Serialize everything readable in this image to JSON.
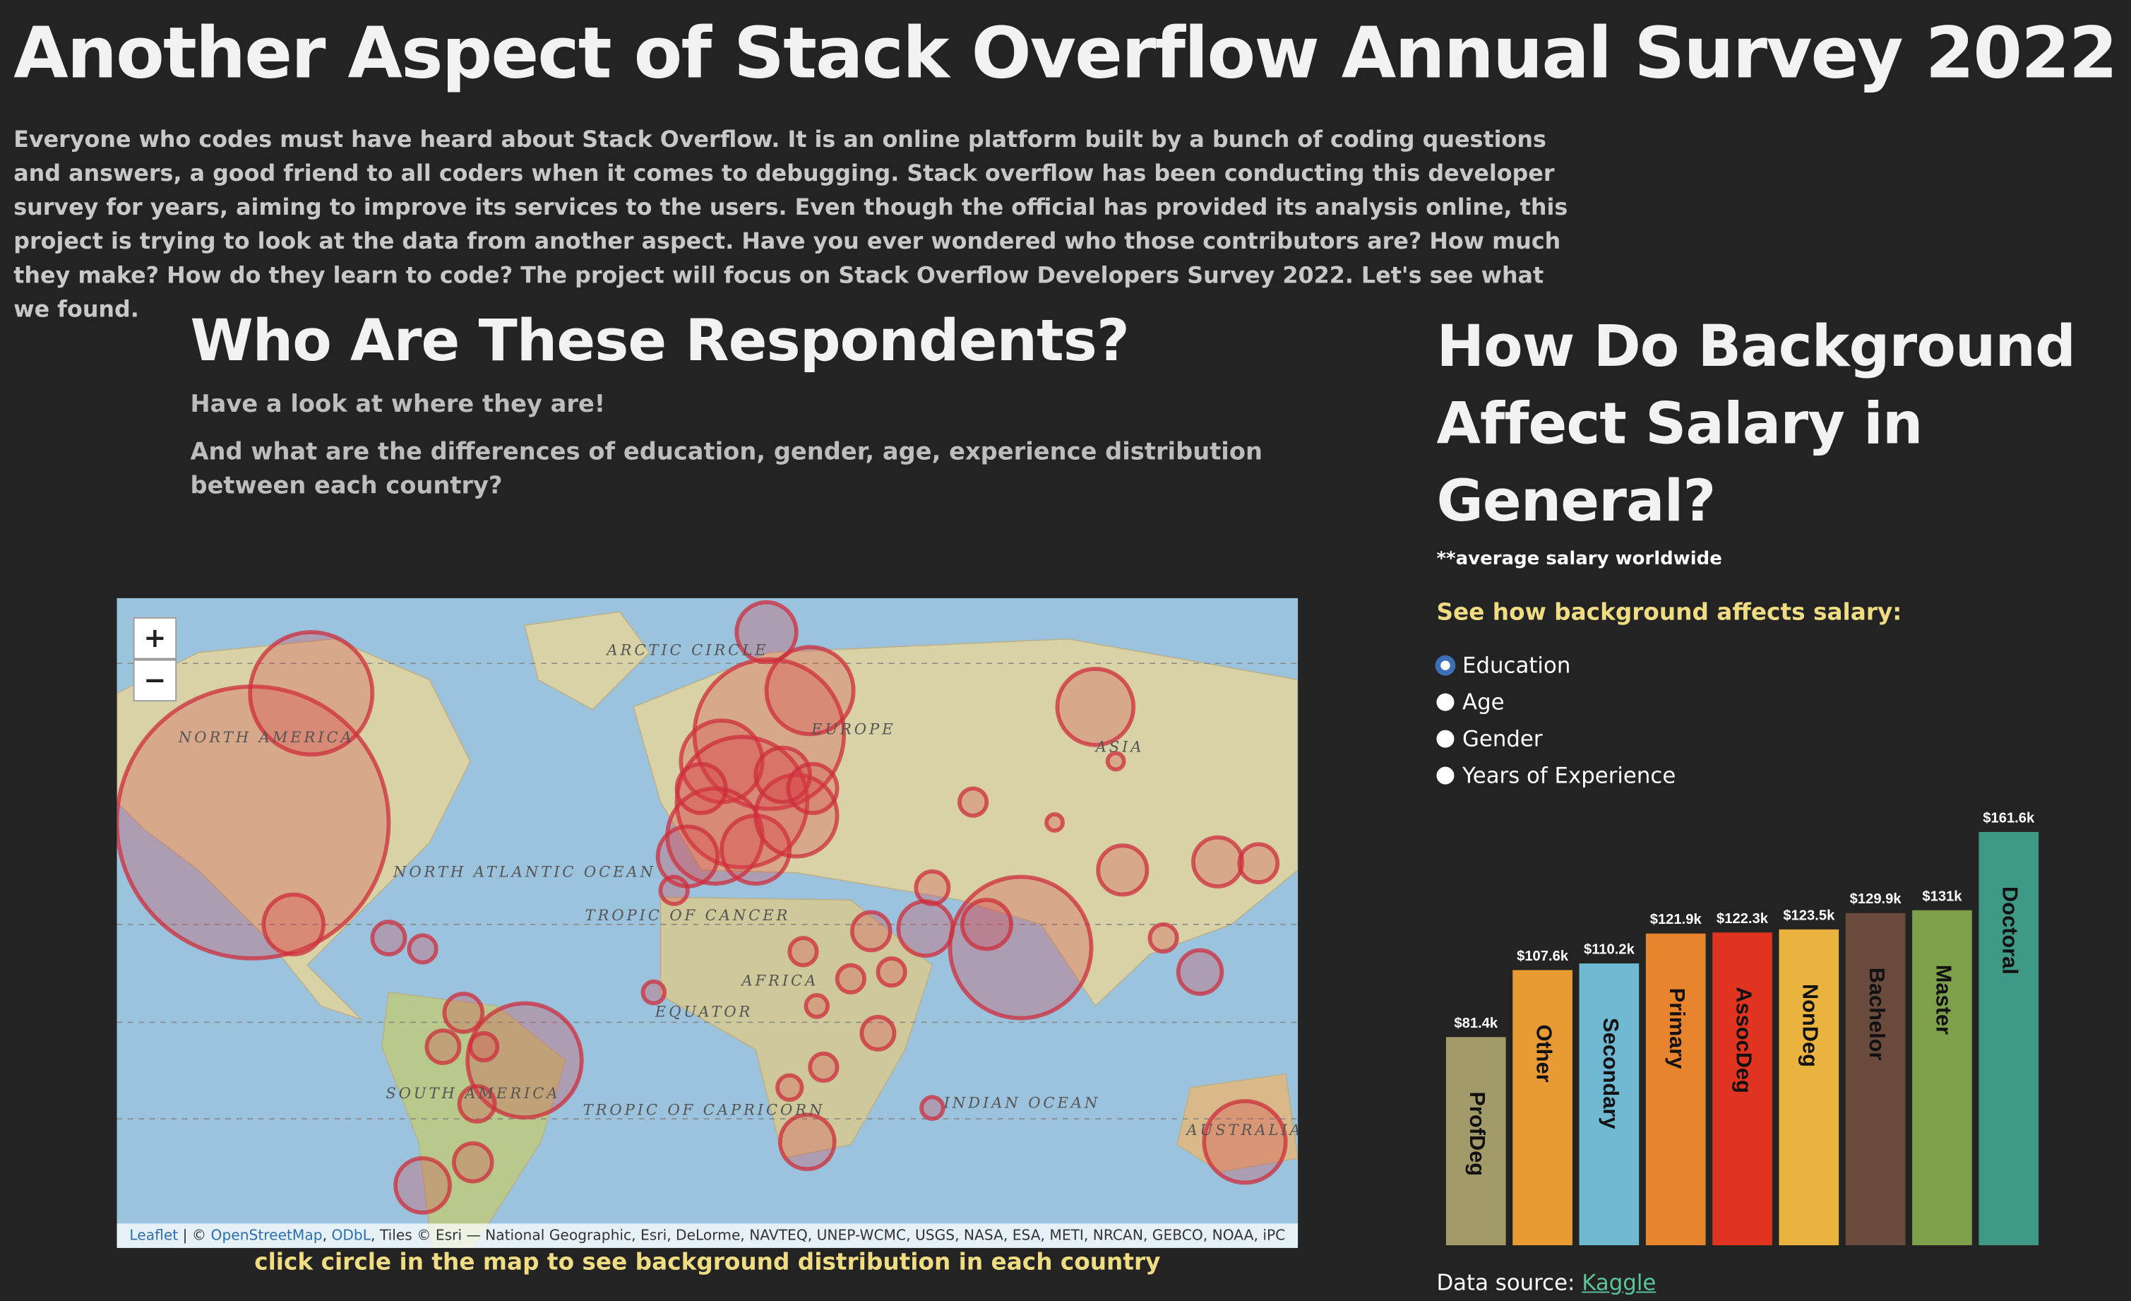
{
  "header": {
    "title": "Another Aspect of Stack Overflow Annual Survey 2022",
    "intro": "Everyone who codes must have heard about Stack Overflow. It is an online platform built by a bunch of coding questions and answers, a good friend to all coders when it comes to debugging. Stack overflow has been conducting this developer survey for years, aiming to improve its services to the users. Even though the official has provided its analysis online, this project is trying to look at the data from another aspect. Have you ever wondered who those contributors are? How much they make? How do they learn to code? The project will focus on Stack Overflow Developers Survey 2022. Let's see what we found."
  },
  "respondents": {
    "heading": "Who Are These Respondents?",
    "line1": "Have a look at where they are!",
    "line2": "And what are the differences of education, gender, age, experience distribution between each country?",
    "map": {
      "zoom_in": "+",
      "zoom_out": "−",
      "labels": [
        "ARCTIC CIRCLE",
        "NORTH AMERICA",
        "EUROPE",
        "ASIA",
        "NORTH ATLANTIC OCEAN",
        "TROPIC OF CANCER",
        "AFRICA",
        "EQUATOR",
        "SOUTH AMERICA",
        "TROPIC OF CAPRICORN",
        "INDIAN OCEAN",
        "AUSTRALIA"
      ],
      "attribution": [
        {
          "text": "Leaflet",
          "link": true
        },
        {
          "text": " | © ",
          "link": false
        },
        {
          "text": "OpenStreetMap",
          "link": true
        },
        {
          "text": ", ",
          "link": false
        },
        {
          "text": "ODbL",
          "link": true
        },
        {
          "text": ", Tiles © Esri — National Geographic, Esri, DeLorme, NAVTEQ, UNEP-WCMC, USGS, NASA, ESA, METI, NRCAN, GEBCO, NOAA, iPC",
          "link": false
        }
      ]
    },
    "caption": "click circle in the map to see background distribution in each country"
  },
  "salary": {
    "heading": "How Do Background Affect Salary in General?",
    "note": "**average salary worldwide",
    "prompt": "See how background affects salary:",
    "options": [
      "Education",
      "Age",
      "Gender",
      "Years of Experience"
    ],
    "selected": 0,
    "source_label": "Data source:",
    "source_link": "Kaggle"
  },
  "chart_data": {
    "type": "bar",
    "categories": [
      "ProfDeg",
      "Other",
      "Secondary",
      "Primary",
      "AssocDeg",
      "NonDeg",
      "Bachelor",
      "Master",
      "Doctoral"
    ],
    "values": [
      81.4,
      107.6,
      110.2,
      121.9,
      122.3,
      123.5,
      129.9,
      131,
      161.6
    ],
    "value_labels": [
      "$81.4k",
      "$107.6k",
      "$110.2k",
      "$121.9k",
      "$122.3k",
      "$123.5k",
      "$129.9k",
      "$131k",
      "$161.6k"
    ],
    "colors": [
      "#a39a6a",
      "#e89a35",
      "#6fb8d2",
      "#e8832e",
      "#e03320",
      "#e9b33e",
      "#6b4a3e",
      "#7ea04a",
      "#3f9a85"
    ]
  }
}
